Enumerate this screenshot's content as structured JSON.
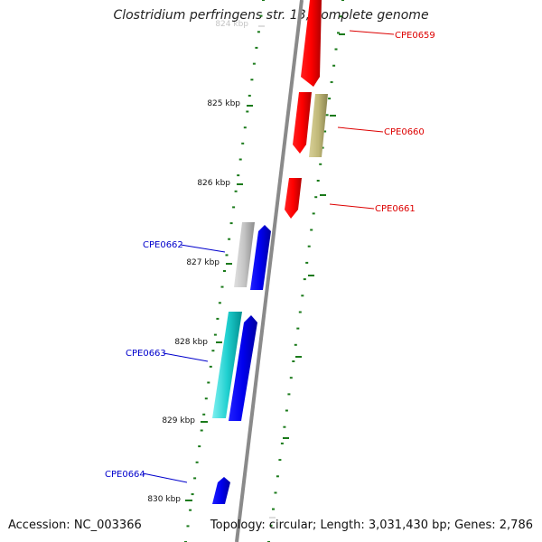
{
  "title": "Clostridium perfringens str. 13, complete genome",
  "footer": {
    "accession": "Accession: NC_003366",
    "genome_info": "Topology: circular; Length: 3,031,430 bp; Genes: 2,786"
  },
  "ticks": [
    {
      "label": "824 kbp"
    },
    {
      "label": "825 kbp"
    },
    {
      "label": "826 kbp"
    },
    {
      "label": "827 kbp"
    },
    {
      "label": "828 kbp"
    },
    {
      "label": "829 kbp"
    },
    {
      "label": "830 kbp"
    }
  ],
  "genes": [
    {
      "name": "CPE0659",
      "color": "#dd0000"
    },
    {
      "name": "CPE0660",
      "color": "#dd0000"
    },
    {
      "name": "CPE0661",
      "color": "#dd0000"
    },
    {
      "name": "CPE0662",
      "color": "#0000cc"
    },
    {
      "name": "CPE0663",
      "color": "#0000cc"
    },
    {
      "name": "CPE0664",
      "color": "#0000cc"
    }
  ],
  "colors": {
    "forward_strand": "#ff0000",
    "reverse_strand": "#0000ee",
    "other_strand_olive": "#b8b070",
    "other_strand_gray": "#b0b0b0",
    "other_strand_cyan": "#00c8c8",
    "tick": "#1a7a1a",
    "backbone": "#888888"
  }
}
